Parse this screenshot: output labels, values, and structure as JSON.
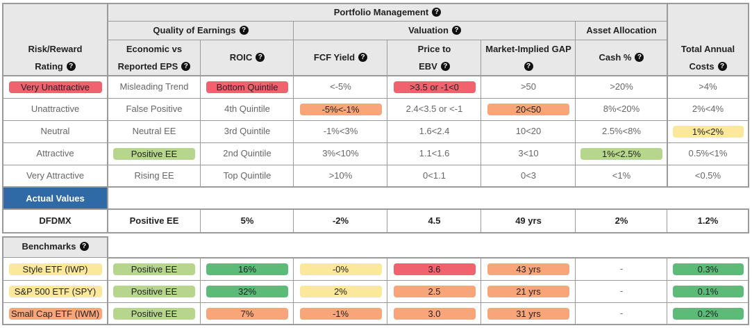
{
  "header": {
    "portfolio_management": "Portfolio Management",
    "quality_of_earnings": "Quality of Earnings",
    "valuation": "Valuation",
    "asset_allocation": "Asset Allocation",
    "risk_reward_line1": "Risk/Reward",
    "risk_reward_line2": "Rating",
    "econ_line1": "Economic vs",
    "econ_line2": "Reported EPS",
    "roic": "ROIC",
    "fcf_yield": "FCF Yield",
    "price_line1": "Price to",
    "price_line2": "EBV",
    "gap": "Market-Implied GAP",
    "cash": "Cash %",
    "costs_line1": "Total Annual",
    "costs_line2": "Costs"
  },
  "rating_rows": [
    {
      "rating": "Very Unattractive",
      "econ": "Misleading Trend",
      "roic": "Bottom Quintile",
      "fcf": "<-5%",
      "price": ">3.5 or -1<0",
      "gap": ">50",
      "cash": ">20%",
      "costs": ">4%"
    },
    {
      "rating": "Unattractive",
      "econ": "False Positive",
      "roic": "4th Quintile",
      "fcf": "-5%<-1%",
      "price": "2.4<3.5 or <-1",
      "gap": "20<50",
      "cash": "8%<20%",
      "costs": "2%<4%"
    },
    {
      "rating": "Neutral",
      "econ": "Neutral EE",
      "roic": "3rd Quintile",
      "fcf": "-1%<3%",
      "price": "1.6<2.4",
      "gap": "10<20",
      "cash": "2.5%<8%",
      "costs": "1%<2%"
    },
    {
      "rating": "Attractive",
      "econ": "Positive EE",
      "roic": "2nd Quintile",
      "fcf": "3%<10%",
      "price": "1.1<1.6",
      "gap": "3<10",
      "cash": "1%<2.5%",
      "costs": "0.5%<1%"
    },
    {
      "rating": "Very Attractive",
      "econ": "Rising EE",
      "roic": "Top Quintile",
      "fcf": ">10%",
      "price": "0<1.1",
      "gap": "0<3",
      "cash": "<1%",
      "costs": "<0.5%"
    }
  ],
  "actual_values": {
    "label": "Actual Values",
    "ticker": "DFDMX",
    "econ": "Positive EE",
    "roic": "5%",
    "fcf": "-2%",
    "price": "4.5",
    "gap": "49 yrs",
    "cash": "2%",
    "costs": "1.2%"
  },
  "benchmarks": {
    "label": "Benchmarks",
    "rows": [
      {
        "name": "Style ETF (IWP)",
        "econ": "Positive EE",
        "roic": "16%",
        "fcf": "-0%",
        "price": "3.6",
        "gap": "43 yrs",
        "cash": "-",
        "costs": "0.3%"
      },
      {
        "name": "S&P 500 ETF (SPY)",
        "econ": "Positive EE",
        "roic": "32%",
        "fcf": "2%",
        "price": "2.5",
        "gap": "21 yrs",
        "cash": "-",
        "costs": "0.1%"
      },
      {
        "name": "Small Cap ETF (IWM)",
        "econ": "Positive EE",
        "roic": "7%",
        "fcf": "-1%",
        "price": "3.0",
        "gap": "31 yrs",
        "cash": "-",
        "costs": "0.2%"
      }
    ]
  },
  "colors": {
    "very_unattractive": "#f0636e",
    "unattractive": "#f9a57a",
    "neutral": "#fbe89a",
    "attractive": "#b6d68e",
    "very_attractive": "#5cbb78",
    "actual_values_bg": "#2f6aa6",
    "header_bg": "#e8e8e8",
    "border": "#9a9a9a"
  }
}
